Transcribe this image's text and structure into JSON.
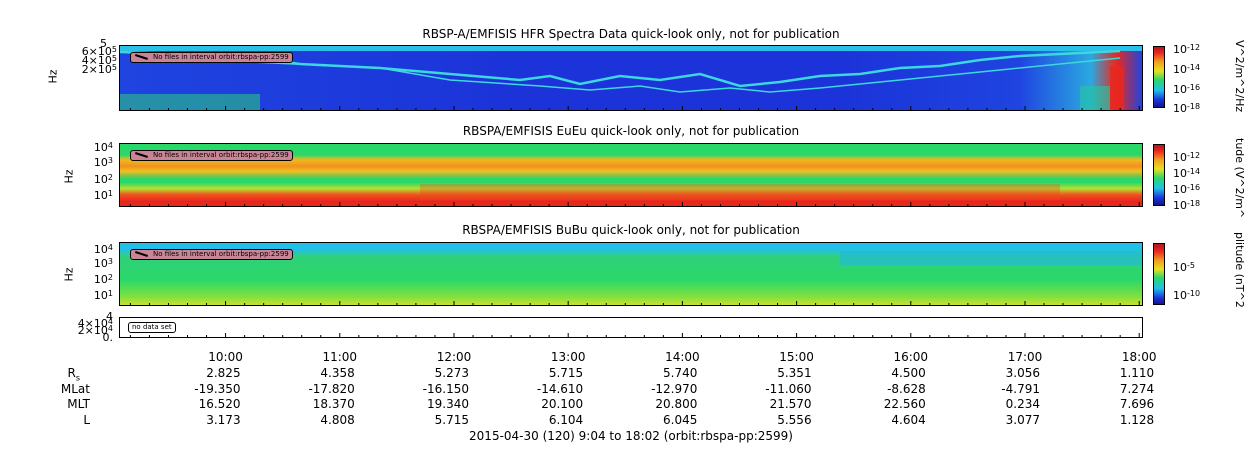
{
  "chart_data": [
    {
      "type": "heatmap",
      "title": "RBSP-A/EMFISIS  HFR Spectra Data quick-look only, not for publication",
      "ylabel": "Hz",
      "yticks": [
        "5",
        "6×10",
        "4×10",
        "2×10"
      ],
      "ytick_exp": [
        "",
        "5",
        "5",
        "5"
      ],
      "colorbar_label": "V^2/m^2/Hz",
      "colorbar_ticks": [
        "10",
        "10",
        "10",
        "10"
      ],
      "colorbar_exp": [
        "-12",
        "-14",
        "-16",
        "-18"
      ],
      "notice": "No files in interval orbit:rbspa-pp:2599"
    },
    {
      "type": "heatmap",
      "title": "RBSPA/EMFISIS  EuEu quick-look only, not for publication",
      "ylabel": "Hz",
      "yticks": [
        "10",
        "10",
        "10",
        "10"
      ],
      "ytick_exp": [
        "4",
        "3",
        "2",
        "1"
      ],
      "colorbar_label": "tude (V^2/m^",
      "colorbar_ticks": [
        "10",
        "10",
        "10",
        "10"
      ],
      "colorbar_exp": [
        "-12",
        "-14",
        "-16",
        "-18"
      ],
      "notice": "No files in interval orbit:rbspa-pp:2599"
    },
    {
      "type": "heatmap",
      "title": "RBSPA/EMFISIS  BuBu quick-look only, not for publication",
      "ylabel": "Hz",
      "yticks": [
        "10",
        "10",
        "10",
        "10"
      ],
      "ytick_exp": [
        "4",
        "3",
        "2",
        "1"
      ],
      "colorbar_label": "plitude (nT^2",
      "colorbar_ticks": [
        "10",
        "10"
      ],
      "colorbar_exp": [
        "-5",
        "-10"
      ],
      "notice": "No files in interval orbit:rbspa-pp:2599"
    },
    {
      "type": "line",
      "title": "",
      "ylabel": "",
      "yticks": [
        "4",
        "4×10",
        "2×10",
        "0."
      ],
      "ytick_exp": [
        "",
        "4",
        "4",
        ""
      ],
      "notice": "no data set"
    }
  ],
  "x_axis": {
    "ticks": [
      "10:00",
      "11:00",
      "12:00",
      "13:00",
      "14:00",
      "15:00",
      "16:00",
      "17:00",
      "18:00"
    ],
    "hours": [
      10,
      11,
      12,
      13,
      14,
      15,
      16,
      17,
      18
    ],
    "start_hour": 9.0667,
    "end_hour": 18.0333
  },
  "ephemeris": [
    {
      "label": "R",
      "sub": "s",
      "values": [
        "2.825",
        "4.358",
        "5.273",
        "5.715",
        "5.740",
        "5.351",
        "4.500",
        "3.056",
        "1.110"
      ]
    },
    {
      "label": "MLat",
      "sub": "",
      "values": [
        "-19.350",
        "-17.820",
        "-16.150",
        "-14.610",
        "-12.970",
        "-11.060",
        "-8.628",
        "-4.791",
        "7.274"
      ]
    },
    {
      "label": "MLT",
      "sub": "",
      "values": [
        "16.520",
        "18.370",
        "19.340",
        "20.100",
        "20.800",
        "21.570",
        "22.560",
        "0.234",
        "7.696"
      ]
    },
    {
      "label": "L",
      "sub": "",
      "values": [
        "3.173",
        "4.808",
        "5.715",
        "6.104",
        "6.045",
        "5.556",
        "4.604",
        "3.077",
        "1.128"
      ]
    }
  ],
  "footer": "2015-04-30 (120) 9:04 to 18:02 (orbit:rbspa-pp:2599)",
  "colors": {
    "deep_blue": "#1a2fd6",
    "green": "#1ee05a",
    "red": "#e8281e",
    "cyan": "#22b8e8"
  }
}
